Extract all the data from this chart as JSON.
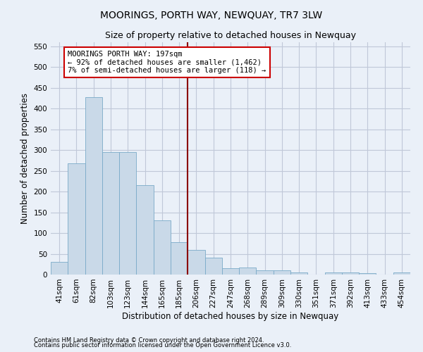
{
  "title": "MOORINGS, PORTH WAY, NEWQUAY, TR7 3LW",
  "subtitle": "Size of property relative to detached houses in Newquay",
  "xlabel": "Distribution of detached houses by size in Newquay",
  "ylabel": "Number of detached properties",
  "categories": [
    "41sqm",
    "61sqm",
    "82sqm",
    "103sqm",
    "123sqm",
    "144sqm",
    "165sqm",
    "185sqm",
    "206sqm",
    "227sqm",
    "247sqm",
    "268sqm",
    "289sqm",
    "309sqm",
    "330sqm",
    "351sqm",
    "371sqm",
    "392sqm",
    "413sqm",
    "433sqm",
    "454sqm"
  ],
  "values": [
    30,
    268,
    428,
    295,
    295,
    216,
    130,
    78,
    60,
    40,
    15,
    17,
    10,
    10,
    5,
    0,
    5,
    5,
    3,
    0,
    5
  ],
  "bar_color": "#c9d9e8",
  "bar_edge_color": "#7aaac8",
  "grid_color": "#c0c8d8",
  "background_color": "#eaf0f8",
  "vline_color": "#8b0000",
  "annotation_text": "MOORINGS PORTH WAY: 197sqm\n← 92% of detached houses are smaller (1,462)\n7% of semi-detached houses are larger (118) →",
  "annotation_box_color": "#ffffff",
  "annotation_box_edge": "#cc0000",
  "ylim": [
    0,
    560
  ],
  "yticks": [
    0,
    50,
    100,
    150,
    200,
    250,
    300,
    350,
    400,
    450,
    500,
    550
  ],
  "footnote1": "Contains HM Land Registry data © Crown copyright and database right 2024.",
  "footnote2": "Contains public sector information licensed under the Open Government Licence v3.0.",
  "title_fontsize": 10,
  "subtitle_fontsize": 9,
  "label_fontsize": 8.5,
  "tick_fontsize": 7.5,
  "annotation_fontsize": 7.5
}
